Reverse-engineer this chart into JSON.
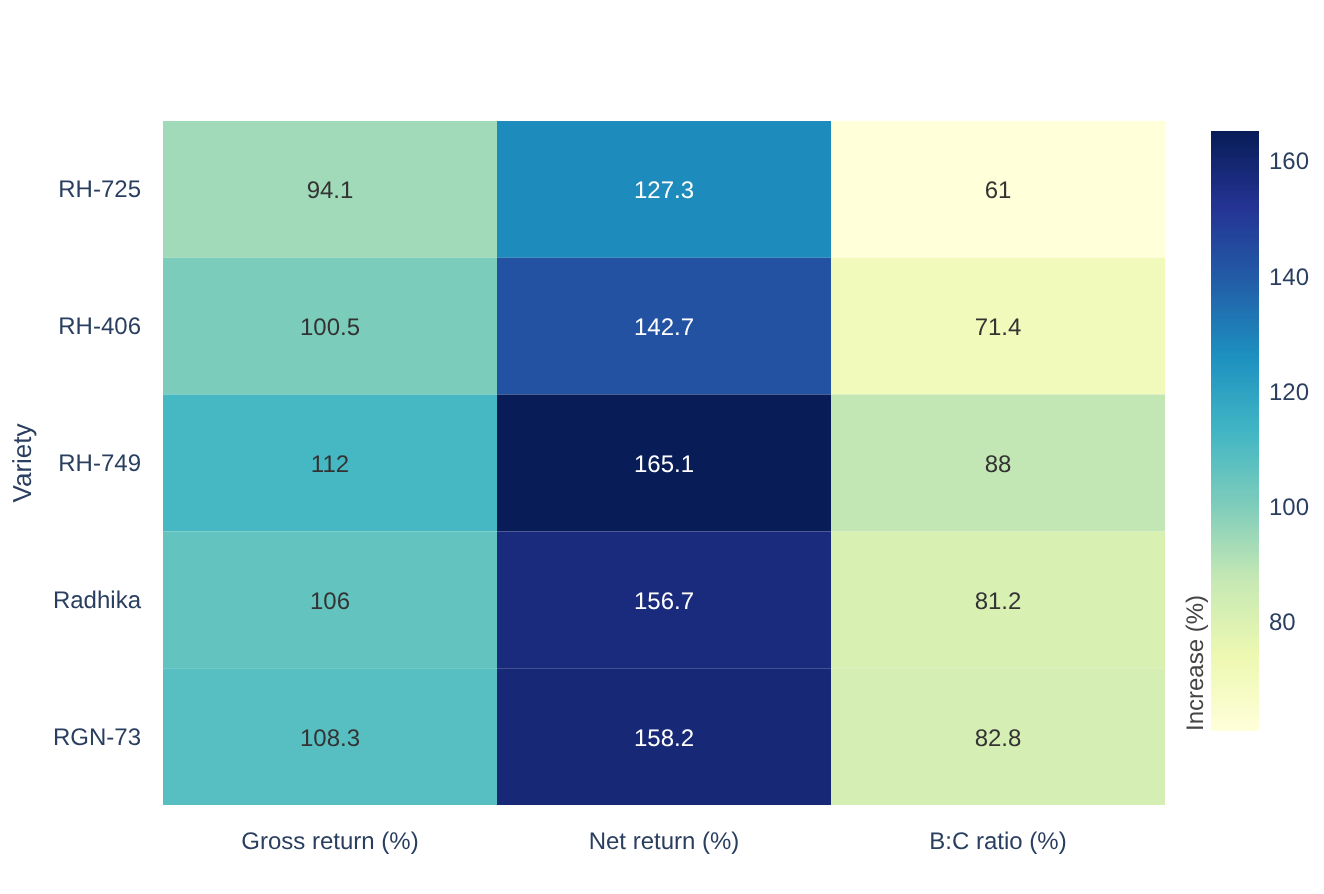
{
  "chart_data": {
    "type": "heatmap",
    "ylabel": "Variety",
    "clabel": "Increase (%)",
    "categories": [
      "Gross return (%)",
      "Net return (%)",
      "B:C ratio (%)"
    ],
    "y_categories": [
      "RH-725",
      "RH-406",
      "RH-749",
      "Radhika",
      "RGN-73"
    ],
    "cells": [
      [
        94.1,
        127.3,
        61
      ],
      [
        100.5,
        142.7,
        71.4
      ],
      [
        112,
        165.1,
        88
      ],
      [
        106,
        156.7,
        81.2
      ],
      [
        108.3,
        158.2,
        82.8
      ]
    ],
    "data_labels": true,
    "clim": [
      61,
      165.1
    ],
    "cticks": [
      80,
      100,
      120,
      140,
      160
    ]
  }
}
